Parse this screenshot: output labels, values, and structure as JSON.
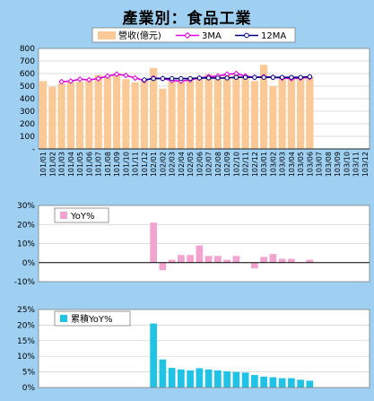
{
  "title": "產業別：食品工業",
  "colors": {
    "background": "#9fd0f2",
    "revenue_bar": "#fbc995",
    "ma3": "#dd00dd",
    "ma12": "#000080",
    "yoy_bar": "#f2a3cf",
    "cum_yoy_bar": "#1fc3e6"
  },
  "chart_data": [
    {
      "type": "bar",
      "title": "",
      "ylim": [
        0,
        800
      ],
      "yticks": [
        "800",
        "700",
        "600",
        "500",
        "400",
        "300",
        "200",
        "100",
        "-"
      ],
      "categories": [
        "101/01",
        "101/02",
        "101/03",
        "101/04",
        "101/05",
        "101/06",
        "101/07",
        "101/08",
        "101/09",
        "101/10",
        "101/11",
        "101/12",
        "102/01",
        "102/02",
        "102/03",
        "102/04",
        "102/05",
        "102/06",
        "102/07",
        "102/08",
        "102/09",
        "102/10",
        "102/11",
        "102/12",
        "103/01",
        "103/02",
        "103/03",
        "103/04",
        "103/05",
        "103/06",
        "103/07",
        "103/08",
        "103/09",
        "103/10",
        "103/11",
        "103/12"
      ],
      "series": [
        {
          "name": "營收(億元)",
          "kind": "bar",
          "values": [
            540,
            495,
            520,
            530,
            535,
            545,
            590,
            575,
            600,
            555,
            530,
            545,
            645,
            480,
            540,
            545,
            560,
            565,
            595,
            575,
            600,
            595,
            570,
            540,
            670,
            500,
            560,
            570,
            560,
            575,
            null,
            null,
            null,
            null,
            null,
            null
          ]
        },
        {
          "name": "3MA",
          "kind": "line",
          "values": [
            null,
            null,
            535,
            540,
            555,
            550,
            560,
            580,
            595,
            585,
            565,
            545,
            565,
            560,
            545,
            540,
            550,
            565,
            575,
            580,
            595,
            600,
            580,
            570,
            575,
            570,
            565,
            560,
            565,
            570,
            null,
            null,
            null,
            null,
            null,
            null
          ]
        },
        {
          "name": "12MA",
          "kind": "line",
          "values": [
            null,
            null,
            null,
            null,
            null,
            null,
            null,
            null,
            null,
            null,
            null,
            550,
            560,
            560,
            560,
            560,
            560,
            565,
            565,
            565,
            565,
            570,
            570,
            570,
            570,
            570,
            570,
            570,
            570,
            575,
            null,
            null,
            null,
            null,
            null,
            null
          ]
        }
      ]
    },
    {
      "type": "bar",
      "title": "",
      "ylim": [
        -10,
        30
      ],
      "yticks": [
        "30%",
        "20%",
        "10%",
        "0%",
        "-10%"
      ],
      "series": [
        {
          "name": "YoY%",
          "values": [
            null,
            null,
            null,
            null,
            null,
            null,
            null,
            null,
            null,
            null,
            null,
            null,
            21,
            -4,
            1.5,
            4,
            4,
            9,
            3.5,
            3.5,
            1.5,
            3.5,
            0,
            -3,
            3,
            4.5,
            2,
            2,
            0,
            1.5,
            null,
            null,
            null,
            null,
            null,
            null
          ]
        }
      ]
    },
    {
      "type": "bar",
      "title": "",
      "ylim": [
        0,
        25
      ],
      "yticks": [
        "25%",
        "20%",
        "15%",
        "10%",
        "5%",
        "0%"
      ],
      "series": [
        {
          "name": "累積YoY%",
          "values": [
            null,
            null,
            null,
            null,
            null,
            null,
            null,
            null,
            null,
            null,
            null,
            null,
            20.5,
            9,
            6.3,
            5.8,
            5.5,
            6.2,
            5.8,
            5.5,
            5.2,
            5,
            4.8,
            4,
            3.5,
            3.3,
            3,
            3,
            2.5,
            2.2,
            null,
            null,
            null,
            null,
            null,
            null
          ]
        }
      ]
    }
  ]
}
